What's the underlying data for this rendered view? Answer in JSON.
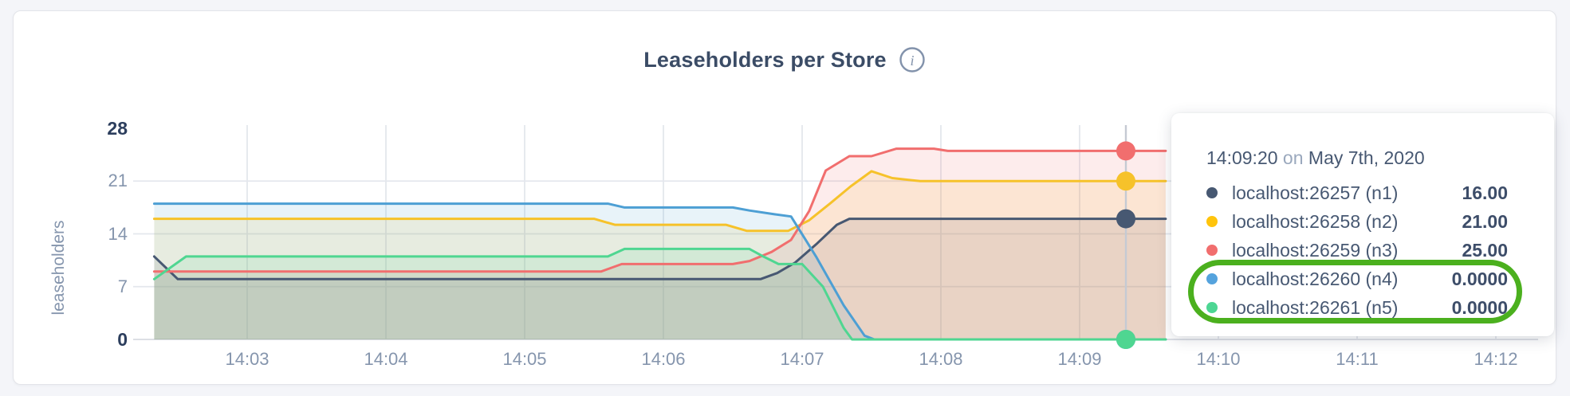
{
  "title_info_icon_glyph": "i",
  "chart_data": {
    "type": "area",
    "title": "Leaseholders per Store",
    "ylabel": "leaseholders",
    "ylim": [
      0,
      28
    ],
    "y_ticks": [
      0,
      7,
      14,
      21,
      28
    ],
    "y_ticks_bold": [
      0,
      28
    ],
    "grid_y_values": [
      7,
      14,
      21
    ],
    "x_ticks": [
      "14:03",
      "14:04",
      "14:05",
      "14:06",
      "14:07",
      "14:08",
      "14:09",
      "14:10",
      "14:11",
      "14:12"
    ],
    "x_tick_minutes": [
      3,
      4,
      5,
      6,
      7,
      8,
      9,
      10,
      11,
      12
    ],
    "x_domain_minutes": [
      2.33,
      9.62
    ],
    "legend_position": "tooltip",
    "grid": true,
    "series": [
      {
        "name": "localhost:26257 (n1)",
        "color": "#475872",
        "points": [
          [
            2.33,
            11
          ],
          [
            2.5,
            8
          ],
          [
            6.7,
            8
          ],
          [
            6.82,
            8.8
          ],
          [
            6.95,
            10.2
          ],
          [
            7.1,
            12.6
          ],
          [
            7.25,
            15.2
          ],
          [
            7.34,
            16
          ],
          [
            9.62,
            16
          ]
        ]
      },
      {
        "name": "localhost:26258 (n2)",
        "color": "#f6c22a",
        "points": [
          [
            2.33,
            16
          ],
          [
            5.5,
            16
          ],
          [
            5.65,
            15.2
          ],
          [
            6.45,
            15.2
          ],
          [
            6.6,
            14.4
          ],
          [
            6.9,
            14.4
          ],
          [
            7.05,
            15.8
          ],
          [
            7.2,
            18
          ],
          [
            7.35,
            20.3
          ],
          [
            7.5,
            22.3
          ],
          [
            7.65,
            21.4
          ],
          [
            7.85,
            21
          ],
          [
            9.62,
            21
          ]
        ]
      },
      {
        "name": "localhost:26259 (n3)",
        "color": "#f16e6e",
        "points": [
          [
            2.33,
            9
          ],
          [
            5.55,
            9
          ],
          [
            5.7,
            10
          ],
          [
            6.5,
            10
          ],
          [
            6.62,
            10.4
          ],
          [
            6.78,
            11.6
          ],
          [
            6.92,
            13.2
          ],
          [
            7.05,
            17
          ],
          [
            7.17,
            22.4
          ],
          [
            7.34,
            24.3
          ],
          [
            7.5,
            24.3
          ],
          [
            7.68,
            25.3
          ],
          [
            7.95,
            25.3
          ],
          [
            8.05,
            25
          ],
          [
            9.62,
            25
          ]
        ]
      },
      {
        "name": "localhost:26260 (n4)",
        "color": "#4d9fd4",
        "points": [
          [
            2.33,
            18
          ],
          [
            5.6,
            18
          ],
          [
            5.72,
            17.5
          ],
          [
            6.5,
            17.5
          ],
          [
            6.62,
            17.1
          ],
          [
            6.8,
            16.6
          ],
          [
            6.92,
            16.3
          ],
          [
            7.1,
            11
          ],
          [
            7.3,
            4.5
          ],
          [
            7.45,
            0.5
          ],
          [
            7.52,
            0
          ],
          [
            9.62,
            0
          ]
        ]
      },
      {
        "name": "localhost:26261 (n5)",
        "color": "#4fd691",
        "points": [
          [
            2.33,
            8
          ],
          [
            2.56,
            11
          ],
          [
            5.6,
            11
          ],
          [
            5.72,
            12
          ],
          [
            6.62,
            12
          ],
          [
            6.72,
            11
          ],
          [
            6.83,
            10
          ],
          [
            7.0,
            10
          ],
          [
            7.15,
            7
          ],
          [
            7.3,
            1.5
          ],
          [
            7.36,
            0
          ],
          [
            9.62,
            0
          ]
        ]
      }
    ],
    "hover": {
      "x_minutes": 9.3333,
      "values": [
        16,
        21,
        25,
        0,
        0
      ]
    },
    "fill_opacity": 0.13
  },
  "tooltip": {
    "time": "14:09:20",
    "on_word": "on",
    "date": "May 7th, 2020",
    "rows": [
      {
        "label": "localhost:26257 (n1)",
        "value": "16.00",
        "color": "#475872",
        "circled": false
      },
      {
        "label": "localhost:26258 (n2)",
        "value": "21.00",
        "color": "#ffc40c",
        "circled": false
      },
      {
        "label": "localhost:26259 (n3)",
        "value": "25.00",
        "color": "#f16e6e",
        "circled": false
      },
      {
        "label": "localhost:26260 (n4)",
        "value": "0.0000",
        "color": "#55a3dd",
        "circled": true
      },
      {
        "label": "localhost:26261 (n5)",
        "value": "0.0000",
        "color": "#4dd693",
        "circled": true
      }
    ]
  },
  "annotation": {
    "shape": "oval",
    "color": "#4bb01e"
  },
  "colors": {
    "page_bg": "#f4f5f9",
    "card_bg": "#ffffff",
    "grid": "#e4e7ed",
    "baseline": "#dcdfe5",
    "hover_line": "#c5cad3",
    "tick_text": "#8595ad",
    "tick_text_bold": "#2c3e5d",
    "title_text": "#3b4c66",
    "tooltip_text": "#475872",
    "tooltip_value": "#3d4d69"
  }
}
